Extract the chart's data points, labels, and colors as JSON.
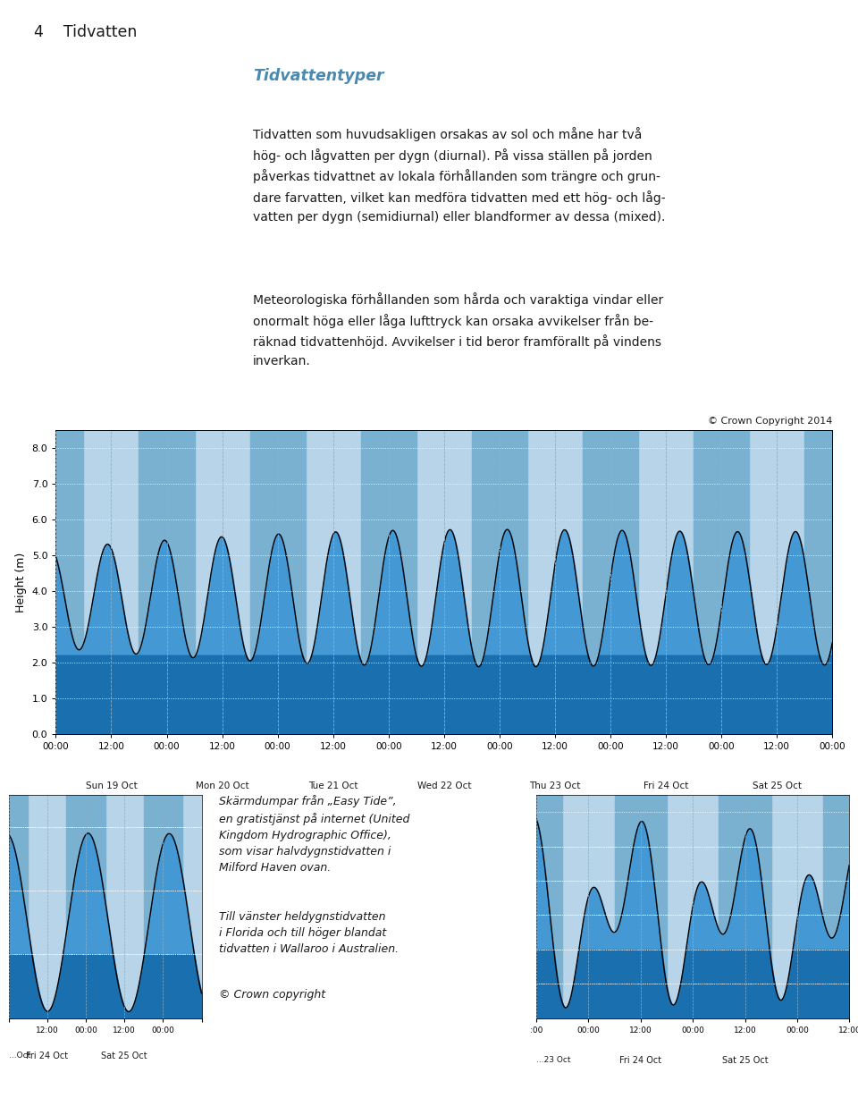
{
  "header_bg": "#7fa8b8",
  "header_text": "4    Tidvatten",
  "title_text": "Tidvattentyper",
  "title_color": "#4a8aaf",
  "body_text1": "Tidvatten som huvudsakligen orsakas av sol och måne har två\nhög- och lågvatten per dygn (diurnal). På vissa ställen på jorden\npåverkas tidvattnet av lokala förhållanden som trängre och grun-\ndare farvatten, vilket kan medföra tidvatten med ett hög- och låg-\nvatten per dygn (semidiurnal) eller blandformer av dessa (mixed).",
  "body_text2": "Meteorologiska förhållanden som hårda och varaktiga vindar eller\nonormalt höga eller låga lufttryck kan orsaka avvikelser från be-\nräknad tidvattenhöjd. Avvikelser i tid beror framförallt på vindens\ninverkan.",
  "chart_ylabel": "Height (m)",
  "chart_copyright": "© Crown Copyright 2014",
  "chart_ylim": [
    0.0,
    8.5
  ],
  "chart_yticks": [
    0.0,
    1.0,
    2.0,
    3.0,
    4.0,
    5.0,
    6.0,
    7.0,
    8.0
  ],
  "chart_bg_light": "#b8d4e8",
  "chart_bg_dark": "#7ab0d0",
  "chart_dark_blue": "#1a6faf",
  "chart_light_blue": "#4499d4",
  "chart_night_bg": "#c8d8e4",
  "chart_night_stripe": "#d8e8f0",
  "day_labels": [
    "Sun 19 Oct",
    "Mon 20 Oct",
    "Tue 21 Oct",
    "Wed 22 Oct",
    "Thu 23 Oct",
    "Fri 24 Oct",
    "Sat 25 Oct"
  ],
  "caption_text1": "Skärmdumpar från „Easy Tide”,\nen gratistjänst på internet (United\nKingdom Hydrographic Office),\nsom visar halvdygnstidvatten i\nMilford Haven ovan.",
  "caption_text2": "Till vänster heldygnstidvatten\ni Florida och till höger blandat\ntidvatten i Wallaroo i Australien.",
  "caption_text3": "© Crown copyright",
  "bg_white": "#ffffff",
  "text_color": "#1a1a1a"
}
